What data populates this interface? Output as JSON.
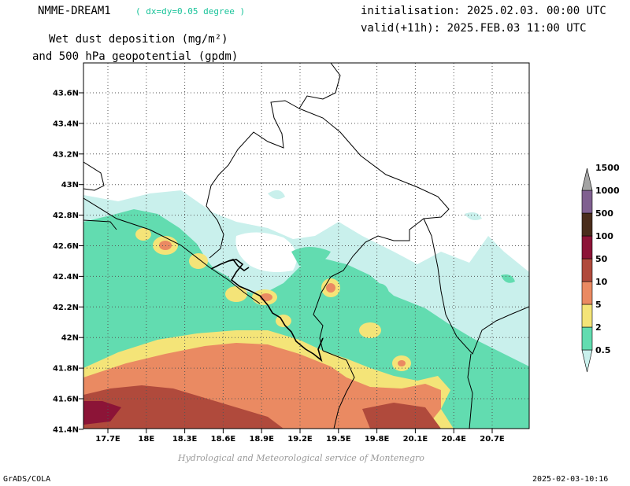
{
  "header": {
    "model": "NMME-DREAM1",
    "resolution": "( dx=dy=0.05 degree )",
    "title_line1": "Wet dust deposition (mg/m²)",
    "title_line2": "and 500 hPa geopotential (gpdm)",
    "init": "initialisation: 2025.02.03. 00:00 UTC",
    "valid": "valid(+11h): 2025.FEB.03 11:00 UTC"
  },
  "map": {
    "lat_labels": [
      "43.6N",
      "43.4N",
      "43.2N",
      "43N",
      "42.8N",
      "42.6N",
      "42.4N",
      "42.2N",
      "42N",
      "41.8N",
      "41.6N",
      "41.4N"
    ],
    "lon_labels": [
      "17.7E",
      "18E",
      "18.3E",
      "18.6E",
      "18.9E",
      "19.2E",
      "19.5E",
      "19.8E",
      "20.1E",
      "20.4E",
      "20.7E"
    ]
  },
  "legend": {
    "levels": [
      "0.5",
      "2",
      "5",
      "10",
      "50",
      "100",
      "500",
      "1000",
      "1500"
    ],
    "colors": [
      "#c9f0ec",
      "#62dcb0",
      "#f4e478",
      "#ea8a62",
      "#b04a3c",
      "#8c1437",
      "#4a2d1c",
      "#806090",
      "#a4a4a4"
    ]
  },
  "footer": {
    "credit": "Hydrological and Meteorological service of Montenegro",
    "software": "GrADS/COLA",
    "timestamp": "2025-02-03-10:16"
  }
}
